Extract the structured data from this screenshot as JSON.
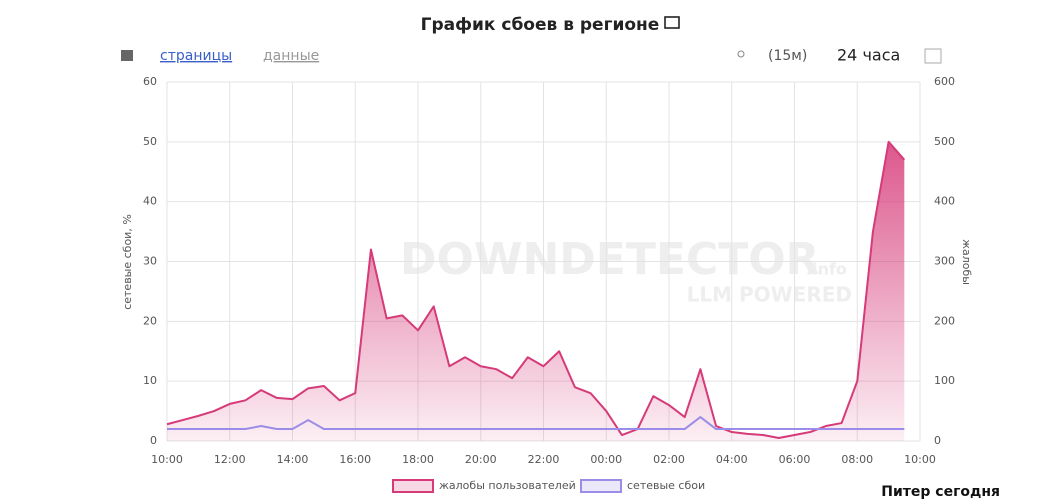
{
  "header": {
    "title": "График сбоев в регионе",
    "tabs": [
      "страницы",
      "данные"
    ],
    "interval": "(15м)",
    "range": "24 часа"
  },
  "watermark": {
    "brand": "DOWNDETECTOR",
    "suffix": ".info",
    "tagline": "LLM POWERED"
  },
  "footer": "Питер сегодня",
  "chart_data": {
    "type": "line",
    "ylabel": "сетевые сбои, %",
    "y2label": "жалобы",
    "categories": [
      "10:00",
      null,
      null,
      null,
      "12:00",
      null,
      null,
      null,
      "14:00",
      null,
      null,
      null,
      "16:00",
      null,
      null,
      null,
      "18:00",
      null,
      null,
      null,
      "20:00",
      null,
      null,
      null,
      "22:00",
      null,
      null,
      null,
      "00:00",
      null,
      null,
      null,
      "02:00",
      null,
      null,
      null,
      "04:00",
      null,
      null,
      null,
      "06:00",
      null,
      null,
      null,
      "08:00",
      null,
      null,
      null,
      "10:00"
    ],
    "ylim": [
      0,
      60
    ],
    "yticks": [
      0,
      10,
      20,
      30,
      40,
      50,
      60
    ],
    "y2lim": [
      0,
      600
    ],
    "y2ticks": [
      0,
      100,
      200,
      300,
      400,
      500,
      600
    ],
    "grid": true,
    "series": [
      {
        "name": "жалобы пользователей",
        "color": "#d63a78",
        "axis": "y2",
        "values": [
          28,
          35,
          42,
          50,
          62,
          68,
          85,
          72,
          70,
          88,
          92,
          68,
          80,
          320,
          205,
          210,
          185,
          225,
          125,
          140,
          125,
          120,
          105,
          140,
          125,
          150,
          90,
          80,
          50,
          10,
          20,
          75,
          60,
          40,
          120,
          25,
          15,
          12,
          10,
          5,
          10,
          15,
          25,
          30,
          100,
          350,
          500,
          470,
          null
        ]
      },
      {
        "name": "сетевые сбои",
        "color": "#9b8ce8",
        "values": [
          2,
          2,
          2,
          2,
          2,
          2,
          2.5,
          2,
          2,
          3.5,
          2,
          2,
          2,
          2,
          2,
          2,
          2,
          2,
          2,
          2,
          2,
          2,
          2,
          2,
          2,
          2,
          2,
          2,
          2,
          2,
          2,
          2,
          2,
          2,
          4,
          2,
          2,
          2,
          2,
          2,
          2,
          2,
          2,
          2,
          2,
          2,
          2,
          2,
          null
        ]
      }
    ]
  }
}
